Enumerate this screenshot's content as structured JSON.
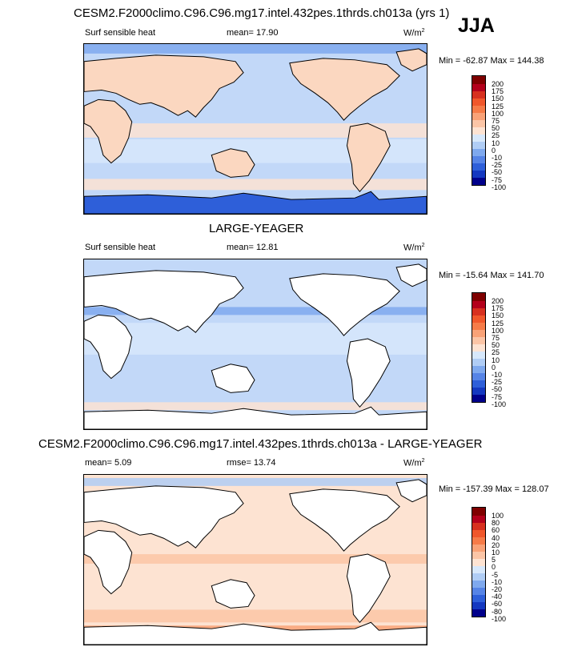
{
  "season": "JJA",
  "panels": [
    {
      "title": "CESM2.F2000climo.C96.C96.mg17.intel.432pes.1thrds.ch013a (yrs 1)",
      "left_label": "Surf sensible heat",
      "mean_label": "mean=  17.90",
      "units": "W/m",
      "units_sup": "2",
      "minmax": "Min = -62.87 Max = 144.38",
      "legend": [
        "200",
        "175",
        "150",
        "125",
        "100",
        "75",
        "50",
        "25",
        "10",
        "0",
        "-10",
        "-25",
        "-50",
        "-75",
        "-100"
      ],
      "colors": [
        "#7f0000",
        "#b3001b",
        "#d7301f",
        "#f0572b",
        "#f67b48",
        "#f9a277",
        "#fbc5a6",
        "#fde3d2",
        "#d7e8fb",
        "#b0cdf5",
        "#7fa9ee",
        "#5684e6",
        "#2e5fd9",
        "#1438c0",
        "#00008b"
      ],
      "ocean": "#c2d8f8",
      "land": "#fbd7c0",
      "antarctica": "#2e5fd9"
    },
    {
      "title": "LARGE-YEAGER",
      "left_label": "Surf sensible heat",
      "mean_label": "mean=  12.81",
      "units": "W/m",
      "units_sup": "2",
      "minmax": "Min = -15.64 Max = 141.70",
      "legend": [
        "200",
        "175",
        "150",
        "125",
        "100",
        "75",
        "50",
        "25",
        "10",
        "0",
        "-10",
        "-25",
        "-50",
        "-75",
        "-100"
      ],
      "colors": [
        "#7f0000",
        "#b3001b",
        "#d7301f",
        "#f0572b",
        "#f67b48",
        "#f9a277",
        "#fbc5a6",
        "#fde3d2",
        "#d7e8fb",
        "#b0cdf5",
        "#7fa9ee",
        "#5684e6",
        "#2e5fd9",
        "#1438c0",
        "#00008b"
      ],
      "ocean": "#c2d8f8",
      "land": "#ffffff",
      "antarctica": "#ffffff"
    },
    {
      "title": "CESM2.F2000climo.C96.C96.mg17.intel.432pes.1thrds.ch013a - LARGE-YEAGER",
      "left_label": "mean=   5.09",
      "mean_label": "rmse=  13.74",
      "units": "W/m",
      "units_sup": "2",
      "minmax": "Min = -157.39 Max = 128.07",
      "legend": [
        "100",
        "80",
        "60",
        "40",
        "20",
        "10",
        "5",
        "0",
        "-5",
        "-10",
        "-20",
        "-40",
        "-60",
        "-80",
        "-100"
      ],
      "colors": [
        "#7f0000",
        "#b3001b",
        "#d7301f",
        "#f0572b",
        "#f67b48",
        "#f9a277",
        "#fbc5a6",
        "#fde3d2",
        "#d7e8fb",
        "#b0cdf5",
        "#7fa9ee",
        "#5684e6",
        "#2e5fd9",
        "#1438c0",
        "#00008b"
      ],
      "ocean": "#fde3d2",
      "land": "#ffffff",
      "antarctica": "#ffffff"
    }
  ]
}
